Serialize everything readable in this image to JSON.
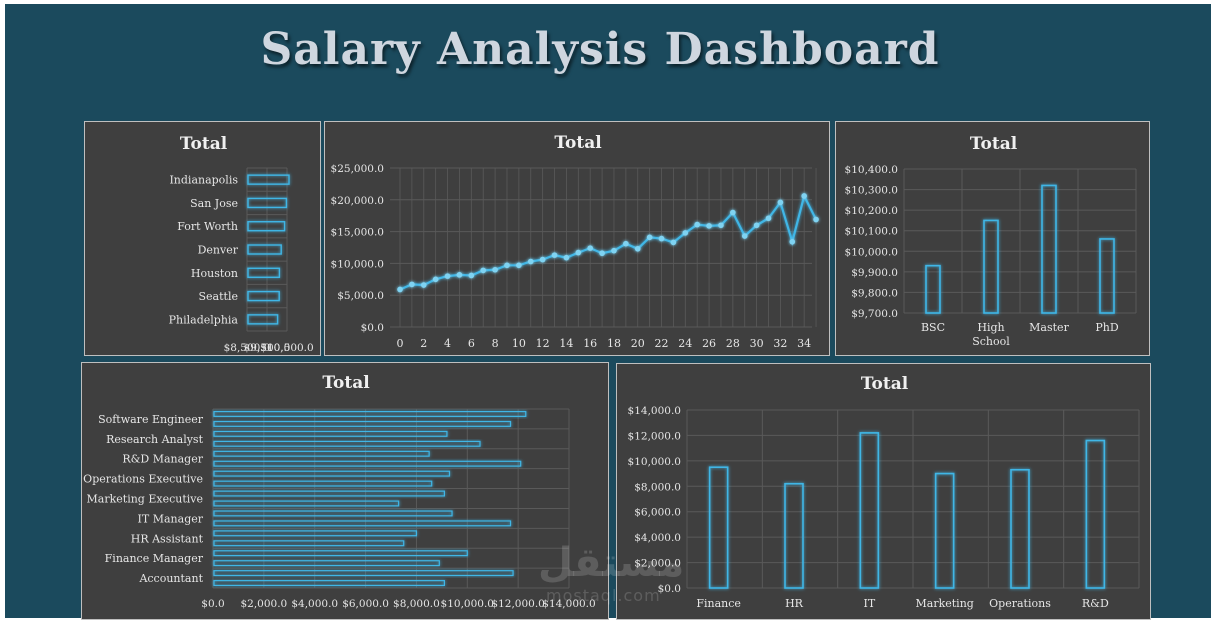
{
  "dashboard": {
    "title": "Salary Analysis Dashboard"
  },
  "watermark": {
    "arabic": "مستقل",
    "latin": "mostaql.com"
  },
  "chart_data": [
    {
      "id": "city",
      "type": "bar",
      "orientation": "horizontal",
      "title": "Total",
      "categories": [
        "Indianapolis",
        "San Jose",
        "Fort Worth",
        "Denver",
        "Houston",
        "Seattle",
        "Philadelphia"
      ],
      "values": [
        10600,
        10470,
        10380,
        10210,
        10120,
        10110,
        10030
      ],
      "xlim": [
        8500,
        10500
      ],
      "xticks": [
        8500,
        9500,
        10500
      ],
      "xtick_labels": [
        "$8,500.0",
        "$9,500.0",
        "$10,500.0"
      ],
      "grid": true,
      "legend": "none"
    },
    {
      "id": "experience",
      "type": "line",
      "title": "Total",
      "x": [
        0,
        1,
        2,
        3,
        4,
        5,
        6,
        7,
        8,
        9,
        10,
        11,
        12,
        13,
        14,
        15,
        16,
        17,
        18,
        19,
        20,
        21,
        22,
        23,
        24,
        25,
        26,
        27,
        28,
        29,
        30,
        31,
        32,
        33,
        34,
        35
      ],
      "values": [
        5900,
        6700,
        6600,
        7500,
        8000,
        8200,
        8100,
        8900,
        9000,
        9700,
        9700,
        10300,
        10600,
        11300,
        10900,
        11700,
        12400,
        11600,
        12000,
        13100,
        12300,
        14100,
        13900,
        13300,
        14800,
        16100,
        15900,
        16000,
        18000,
        14300,
        16000,
        17100,
        19600,
        13400,
        20600,
        16900
      ],
      "ylim": [
        0,
        25000
      ],
      "yticks": [
        0,
        5000,
        10000,
        15000,
        20000,
        25000
      ],
      "ytick_labels": [
        "$0.0",
        "$5,000.0",
        "$10,000.0",
        "$15,000.0",
        "$20,000.0",
        "$25,000.0"
      ],
      "xticks": [
        0,
        2,
        4,
        6,
        8,
        10,
        12,
        14,
        16,
        18,
        20,
        22,
        24,
        26,
        28,
        30,
        32,
        34
      ],
      "xtick_labels": [
        "0",
        "2",
        "4",
        "6",
        "8",
        "10",
        "12",
        "14",
        "16",
        "18",
        "20",
        "22",
        "24",
        "26",
        "28",
        "30",
        "32",
        "34"
      ],
      "grid": true,
      "legend": "none"
    },
    {
      "id": "education",
      "type": "bar",
      "title": "Total",
      "categories": [
        "BSC",
        "High School",
        "Master",
        "PhD"
      ],
      "category_lines": [
        [
          "BSC"
        ],
        [
          "High",
          "School"
        ],
        [
          "Master"
        ],
        [
          "PhD"
        ]
      ],
      "values": [
        9930,
        10150,
        10320,
        10060
      ],
      "ylim": [
        9700,
        10400
      ],
      "yticks": [
        9700,
        9800,
        9900,
        10000,
        10100,
        10200,
        10300,
        10400
      ],
      "ytick_labels": [
        "$9,700.0",
        "$9,800.0",
        "$9,900.0",
        "$10,000.0",
        "$10,100.0",
        "$10,200.0",
        "$10,300.0",
        "$10,400.0"
      ],
      "grid": true,
      "legend": "none"
    },
    {
      "id": "job_title",
      "type": "bar",
      "orientation": "horizontal",
      "title": "Total",
      "bars": [
        12300,
        11700,
        9200,
        10500,
        8500,
        12100,
        9300,
        8600,
        9100,
        7300,
        9400,
        11700,
        8000,
        7500,
        10000,
        8900,
        11800,
        9100
      ],
      "category_labels": [
        "Software Engineer",
        "Research Analyst",
        "R&D Manager",
        "Operations Executive",
        "Marketing Executive",
        "IT Manager",
        "HR Assistant",
        "Finance Manager",
        "Accountant"
      ],
      "xlim": [
        0,
        14000
      ],
      "xticks": [
        0,
        2000,
        4000,
        6000,
        8000,
        10000,
        12000,
        14000
      ],
      "xtick_labels": [
        "$0.0",
        "$2,000.0",
        "$4,000.0",
        "$6,000.0",
        "$8,000.0",
        "$10,000.0",
        "$12,000.0",
        "$14,000.0"
      ],
      "grid": true,
      "legend": "none"
    },
    {
      "id": "department",
      "type": "bar",
      "title": "Total",
      "categories": [
        "Finance",
        "HR",
        "IT",
        "Marketing",
        "Operations",
        "R&D"
      ],
      "values": [
        9500,
        8200,
        12200,
        9000,
        9300,
        11600
      ],
      "ylim": [
        0,
        14000
      ],
      "yticks": [
        0,
        2000,
        4000,
        6000,
        8000,
        10000,
        12000,
        14000
      ],
      "ytick_labels": [
        "$0.0",
        "$2,000.0",
        "$4,000.0",
        "$6,000.0",
        "$8,000.0",
        "$10,000.0",
        "$12,000.0",
        "$14,000.0"
      ],
      "grid": true,
      "legend": "none"
    }
  ],
  "colors": {
    "frame_bg": "#1b4a5d",
    "panel_bg": "#3f3f3f",
    "panel_border": "#bfbfbf",
    "accent": "#3fb6e6",
    "text": "#e6e6e6",
    "title_text": "#f0f0f0",
    "grid": "#5a5a5a"
  }
}
